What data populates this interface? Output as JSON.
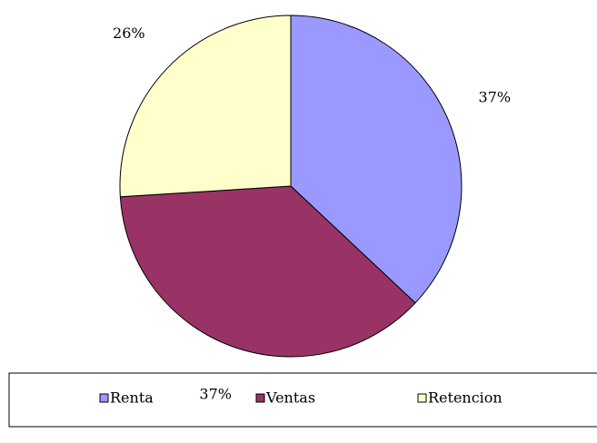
{
  "chart_data": {
    "type": "pie",
    "categories": [
      "Renta",
      "Ventas",
      "Retencion"
    ],
    "values": [
      37,
      37,
      26
    ],
    "value_labels": [
      "37%",
      "37%",
      "26%"
    ],
    "colors": [
      "#9999ff",
      "#993366",
      "#ffffcc"
    ],
    "legend": "bottom"
  }
}
